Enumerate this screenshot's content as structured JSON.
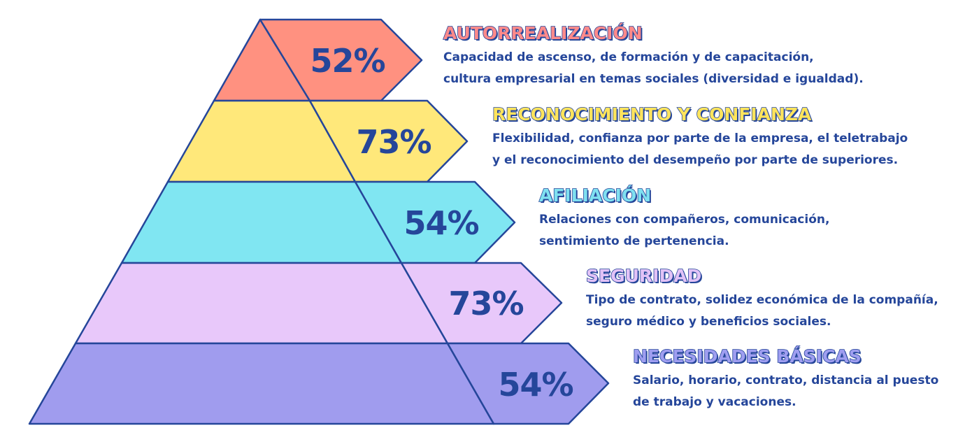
{
  "levels": [
    {
      "title": "AUTORREALIZACIÓN",
      "percent": "52%",
      "value": 52,
      "desc1": "Capacidad de ascenso, de formación y de capacitación,",
      "desc2": "cultura empresarial en temas sociales (diversidad e igualdad).",
      "color": "#ff9180",
      "title_color": "#ff8a8a"
    },
    {
      "title": "RECONOCIMIENTO Y CONFIANZA",
      "percent": "73%",
      "value": 73,
      "desc1": "Flexibilidad, confianza por parte de la empresa, el teletrabajo",
      "desc2": "y el reconocimiento del desempeño por parte de superiores.",
      "color": "#ffe87a",
      "title_color": "#ffe45c"
    },
    {
      "title": "AFILIACIÓN",
      "percent": "54%",
      "value": 54,
      "desc1": "Relaciones con compañeros, comunicación,",
      "desc2": "sentimiento de pertenencia.",
      "color": "#80e6f2",
      "title_color": "#7fe0f0"
    },
    {
      "title": "SEGURIDAD",
      "percent": "73%",
      "value": 73,
      "desc1": "Tipo de contrato, solidez económica de la compañía,",
      "desc2": "seguro médico y beneficios sociales.",
      "color": "#e8c8fa",
      "title_color": "#e2c2f7"
    },
    {
      "title": "NECESIDADES BÁSICAS",
      "percent": "54%",
      "value": 54,
      "desc1": "Salario, horario, contrato, distancia al puesto",
      "desc2": "de trabajo y vacaciones.",
      "color": "#a09cee",
      "title_color": "#9f9ef0"
    }
  ],
  "colors": {
    "stroke": "#25469a",
    "text": "#25469a"
  }
}
